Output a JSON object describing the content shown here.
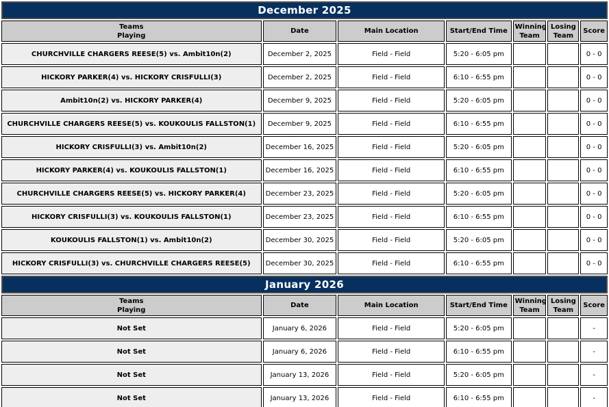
{
  "columns": {
    "teams": "Teams\nPlaying",
    "date": "Date",
    "location": "Main Location",
    "time": "Start/End Time",
    "winning": "Winning\nTeam",
    "losing": "Losing\nTeam",
    "score": "Score"
  },
  "colors": {
    "banner_bg": "#07305f",
    "banner_text": "#ffffff",
    "header_bg": "#cccccc",
    "teams_cell_bg": "#eeeeee",
    "cell_bg": "#ffffff",
    "border": "#000000"
  },
  "sections": [
    {
      "title": "December 2025",
      "rows": [
        {
          "teams": "CHURCHVILLE CHARGERS REESE(5) vs. Ambit10n(2)",
          "date": "December 2, 2025",
          "location": "Field - Field",
          "time": "5:20 - 6:05 pm",
          "winning": "",
          "losing": "",
          "score": "0 - 0"
        },
        {
          "teams": "HICKORY PARKER(4) vs. HICKORY CRISFULLI(3)",
          "date": "December 2, 2025",
          "location": "Field - Field",
          "time": "6:10 - 6:55 pm",
          "winning": "",
          "losing": "",
          "score": "0 - 0"
        },
        {
          "teams": "Ambit10n(2) vs. HICKORY PARKER(4)",
          "date": "December 9, 2025",
          "location": "Field - Field",
          "time": "5:20 - 6:05 pm",
          "winning": "",
          "losing": "",
          "score": "0 - 0"
        },
        {
          "teams": "CHURCHVILLE CHARGERS REESE(5) vs. KOUKOULIS FALLSTON(1)",
          "date": "December 9, 2025",
          "location": "Field - Field",
          "time": "6:10 - 6:55 pm",
          "winning": "",
          "losing": "",
          "score": "0 - 0"
        },
        {
          "teams": "HICKORY CRISFULLI(3) vs. Ambit10n(2)",
          "date": "December 16, 2025",
          "location": "Field - Field",
          "time": "5:20 - 6:05 pm",
          "winning": "",
          "losing": "",
          "score": "0 - 0"
        },
        {
          "teams": "HICKORY PARKER(4) vs. KOUKOULIS FALLSTON(1)",
          "date": "December 16, 2025",
          "location": "Field - Field",
          "time": "6:10 - 6:55 pm",
          "winning": "",
          "losing": "",
          "score": "0 - 0"
        },
        {
          "teams": "CHURCHVILLE CHARGERS REESE(5) vs. HICKORY PARKER(4)",
          "date": "December 23, 2025",
          "location": "Field - Field",
          "time": "5:20 - 6:05 pm",
          "winning": "",
          "losing": "",
          "score": "0 - 0"
        },
        {
          "teams": "HICKORY CRISFULLI(3) vs. KOUKOULIS FALLSTON(1)",
          "date": "December 23, 2025",
          "location": "Field - Field",
          "time": "6:10 - 6:55 pm",
          "winning": "",
          "losing": "",
          "score": "0 - 0"
        },
        {
          "teams": "KOUKOULIS FALLSTON(1) vs. Ambit10n(2)",
          "date": "December 30, 2025",
          "location": "Field - Field",
          "time": "5:20 - 6:05 pm",
          "winning": "",
          "losing": "",
          "score": "0 - 0"
        },
        {
          "teams": "HICKORY CRISFULLI(3) vs. CHURCHVILLE CHARGERS REESE(5)",
          "date": "December 30, 2025",
          "location": "Field - Field",
          "time": "6:10 - 6:55 pm",
          "winning": "",
          "losing": "",
          "score": "0 - 0"
        }
      ]
    },
    {
      "title": "January 2026",
      "rows": [
        {
          "teams": "Not Set",
          "date": "January 6, 2026",
          "location": "Field - Field",
          "time": "5:20 - 6:05 pm",
          "winning": "",
          "losing": "",
          "score": "-"
        },
        {
          "teams": "Not Set",
          "date": "January 6, 2026",
          "location": "Field - Field",
          "time": "6:10 - 6:55 pm",
          "winning": "",
          "losing": "",
          "score": "-"
        },
        {
          "teams": "Not Set",
          "date": "January 13, 2026",
          "location": "Field - Field",
          "time": "5:20 - 6:05 pm",
          "winning": "",
          "losing": "",
          "score": "-"
        },
        {
          "teams": "Not Set",
          "date": "January 13, 2026",
          "location": "Field - Field",
          "time": "6:10 - 6:55 pm",
          "winning": "",
          "losing": "",
          "score": "-"
        }
      ]
    }
  ]
}
